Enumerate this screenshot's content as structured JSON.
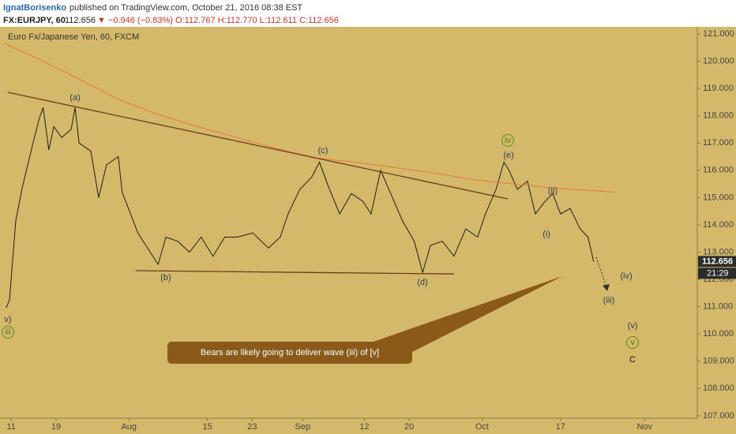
{
  "header": {
    "author": "IgnatBorisenko",
    "published": "published on TradingView.com, October 21, 2016 08:38 EST",
    "symbol": "FX:EURJPY, 60",
    "price": "112.656",
    "change": "▼ −0.946 (−0.83%)",
    "ohlc": "O:112.767 H:112.770 L:112.611 C:112.656"
  },
  "chart_data": {
    "type": "line",
    "subtitle": "Euro Fx/Japanese Yen, 60, FXCM",
    "xlim": [
      -2,
      122.4
    ],
    "ylim": [
      106.91,
      121.26
    ],
    "grid": false,
    "xticks": [
      {
        "value": 0,
        "label": "11"
      },
      {
        "value": 8,
        "label": "19"
      },
      {
        "value": 21,
        "label": "Aug"
      },
      {
        "value": 35,
        "label": "15"
      },
      {
        "value": 43,
        "label": "23"
      },
      {
        "value": 52,
        "label": "Sep"
      },
      {
        "value": 63,
        "label": "12"
      },
      {
        "value": 71,
        "label": "20"
      },
      {
        "value": 84,
        "label": "Oct"
      },
      {
        "value": 98,
        "label": "17"
      },
      {
        "value": 113,
        "label": "Nov"
      }
    ],
    "yticks": [
      {
        "value": 107,
        "label": "107.000"
      },
      {
        "value": 108,
        "label": "108.000"
      },
      {
        "value": 109,
        "label": "109.000"
      },
      {
        "value": 110,
        "label": "110.000"
      },
      {
        "value": 111,
        "label": "111.000"
      },
      {
        "value": 112,
        "label": "112.000"
      },
      {
        "value": 113,
        "label": "113.000"
      },
      {
        "value": 114,
        "label": "114.000"
      },
      {
        "value": 115,
        "label": "115.000"
      },
      {
        "value": 116,
        "label": "116.000"
      },
      {
        "value": 117,
        "label": "117.000"
      },
      {
        "value": 118,
        "label": "118.000"
      },
      {
        "value": 119,
        "label": "119.000"
      },
      {
        "value": 120,
        "label": "120.000"
      },
      {
        "value": 121,
        "label": "121.000"
      }
    ],
    "series": [
      {
        "color": "#1e1e1e",
        "width": 1,
        "x": [
          -0.9,
          -0.3,
          0.8,
          1.9,
          3.6,
          5.0,
          5.7,
          6.7,
          7.6,
          9.0,
          10.7,
          11.4,
          12.1,
          14.2,
          15.6,
          17.0,
          19.1,
          19.8,
          22.6,
          24.8,
          26.2,
          27.6,
          29.7,
          31.8,
          33.9,
          36.0,
          38.1,
          40.3,
          43.1,
          45.9,
          48.0,
          49.4,
          51.5,
          53.6,
          55.0,
          56.5,
          58.6,
          60.7,
          62.8,
          64.2,
          65.9,
          67.7,
          69.8,
          71.9,
          73.4,
          74.8,
          76.9,
          79.0,
          81.1,
          83.2,
          84.6,
          86.5,
          87.9,
          88.8,
          90.3,
          92.1,
          93.5,
          95.2,
          96.6,
          98.0,
          99.7,
          101.5,
          102.9,
          103.9
        ],
        "values": [
          110.96,
          111.25,
          114.14,
          115.3,
          116.75,
          117.9,
          118.3,
          116.75,
          117.6,
          117.2,
          117.5,
          118.3,
          117.0,
          116.7,
          115.0,
          116.2,
          116.5,
          115.2,
          113.7,
          113.0,
          112.55,
          113.55,
          113.4,
          113.0,
          113.55,
          112.85,
          113.55,
          113.55,
          113.7,
          113.15,
          113.55,
          114.4,
          115.3,
          115.75,
          116.3,
          115.45,
          114.4,
          115.15,
          114.85,
          114.4,
          116.0,
          115.15,
          114.15,
          113.4,
          112.25,
          113.25,
          113.4,
          112.85,
          113.85,
          113.55,
          114.4,
          115.3,
          116.3,
          116.0,
          115.3,
          115.6,
          114.4,
          114.85,
          115.15,
          114.4,
          114.6,
          113.85,
          113.55,
          112.656
        ]
      },
      {
        "color": "#e8783e",
        "width": 1,
        "x": [
          -1.3,
          5.0,
          12.1,
          19.1,
          26.2,
          33.2,
          40.3,
          47.3,
          54.3,
          61.4,
          68.4,
          75.5,
          82.5,
          89.5,
          96.6,
          107.6
        ],
        "values": [
          120.65,
          120.07,
          119.35,
          118.6,
          118.05,
          117.6,
          117.2,
          116.8,
          116.45,
          116.3,
          116.1,
          115.9,
          115.65,
          115.5,
          115.35,
          115.2
        ]
      },
      {
        "color": "#6b3b1a",
        "width": 1.3,
        "x": [
          -0.6,
          88.6
        ],
        "values": [
          118.86,
          114.95
        ]
      },
      {
        "color": "#6b3b1a",
        "width": 1.3,
        "x": [
          22.2,
          79.0
        ],
        "values": [
          112.32,
          112.2
        ]
      }
    ],
    "last_time": "21:29",
    "annotations": [
      "(a)",
      "(b)",
      "(c)",
      "(d)",
      "(e)",
      "iv",
      "(i)",
      "(ii)",
      "(iii)",
      "(iv)",
      "(v)",
      "v",
      "C",
      "v)",
      "iii"
    ],
    "callout": "Bears are likely going to deliver wave (iii) of [v]"
  }
}
